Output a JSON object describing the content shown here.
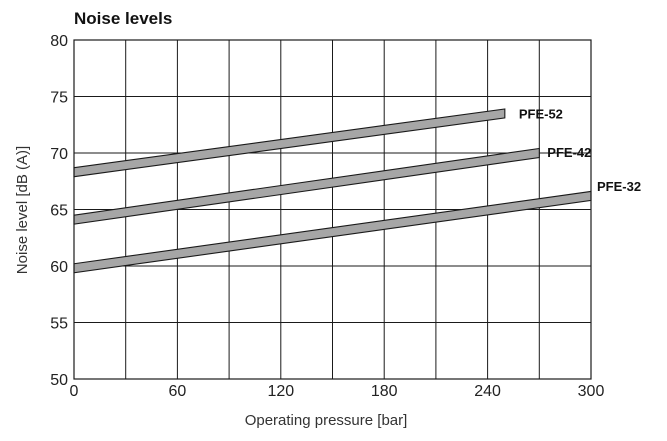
{
  "chart_data": {
    "type": "line",
    "title": "Noise levels",
    "xlabel": "Operating pressure [bar]",
    "ylabel": "Noise level [dB (A)]",
    "xlim": [
      0,
      300
    ],
    "ylim": [
      50,
      80
    ],
    "xticks": [
      0,
      60,
      120,
      180,
      240,
      300
    ],
    "yticks": [
      50,
      55,
      60,
      65,
      70,
      75,
      80
    ],
    "grid": true,
    "series": [
      {
        "name": "PFE-52",
        "x": [
          0,
          250
        ],
        "y": [
          68.3,
          73.5
        ]
      },
      {
        "name": "PFE-42",
        "x": [
          0,
          270
        ],
        "y": [
          64.1,
          70.0
        ]
      },
      {
        "name": "PFE-32",
        "x": [
          0,
          300
        ],
        "y": [
          59.8,
          66.2
        ]
      }
    ],
    "colors": {
      "band": "#a6a6a6",
      "band_edge": "#1a1a1a",
      "grid": "#1a1a1a"
    }
  }
}
